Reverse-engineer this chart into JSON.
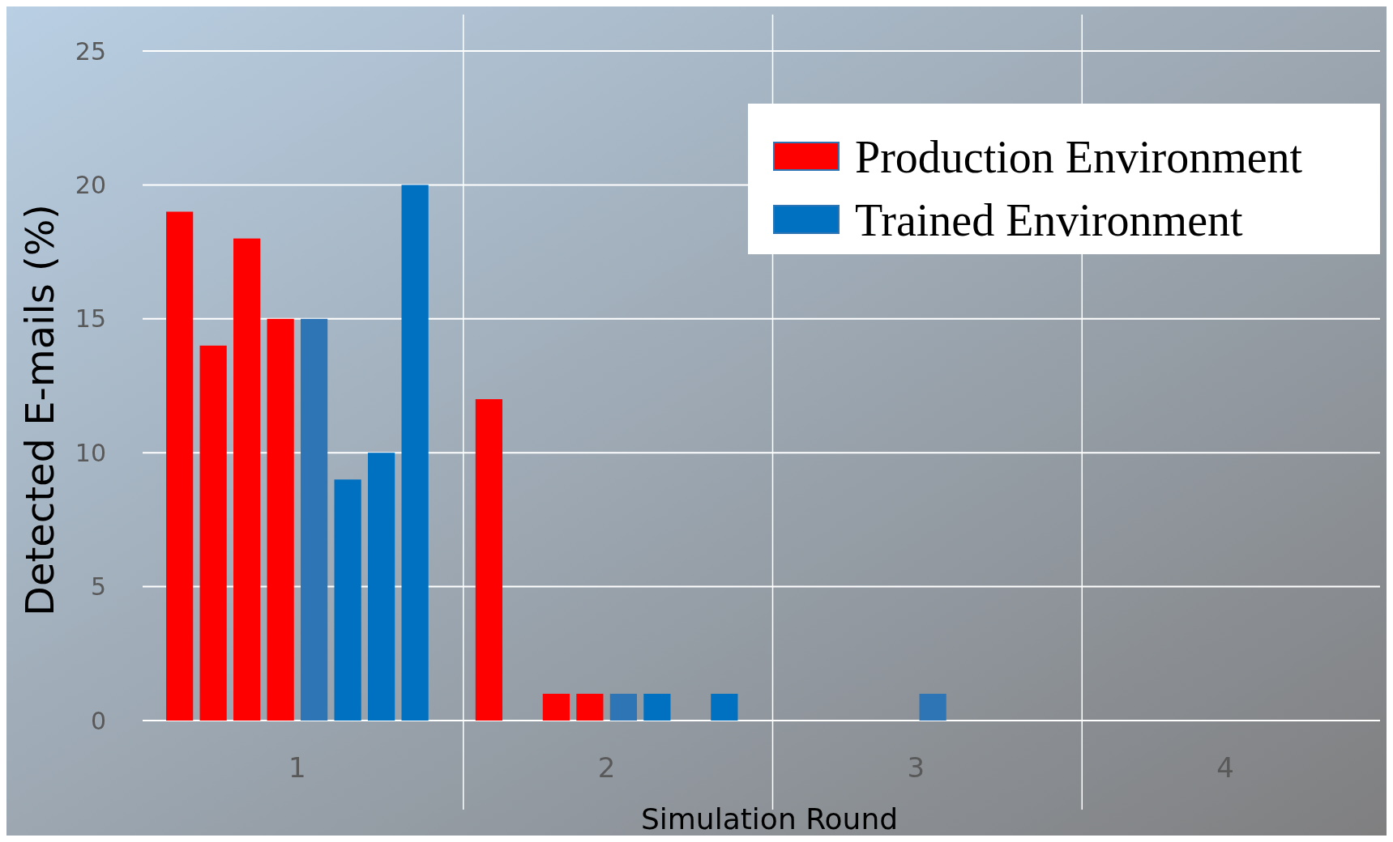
{
  "chart_data": {
    "type": "bar",
    "xlabel": "Simulation Round",
    "ylabel": "Detected E-mails (%)",
    "categories": [
      "1",
      "2",
      "3",
      "4"
    ],
    "series": [
      {
        "name": "Production Environment",
        "color": "#ff0000",
        "values": [
          19,
          12,
          0,
          0
        ]
      },
      {
        "color": "#ff0000",
        "values": [
          14,
          0,
          0,
          0
        ]
      },
      {
        "color": "#ff0000",
        "values": [
          18,
          1,
          0,
          0
        ]
      },
      {
        "color": "#ff0000",
        "values": [
          15,
          1,
          0,
          0
        ]
      },
      {
        "color": "#2e75b6",
        "values": [
          15,
          1,
          1,
          0
        ]
      },
      {
        "name": "Trained Environment",
        "color": "#0070c0",
        "values": [
          9,
          1,
          0,
          0
        ]
      },
      {
        "color": "#0070c0",
        "values": [
          10,
          0,
          0,
          0
        ]
      },
      {
        "color": "#0070c0",
        "values": [
          20,
          1,
          0,
          0
        ]
      }
    ],
    "ylim": [
      0,
      25
    ],
    "yticks": [
      0,
      5,
      10,
      15,
      20,
      25
    ],
    "grid": true,
    "legend": "top right"
  }
}
